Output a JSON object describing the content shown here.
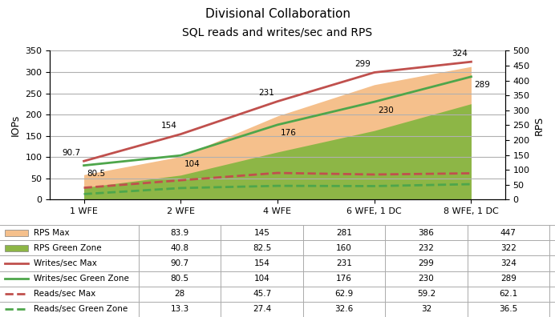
{
  "chart_data": {
    "type": "line",
    "title": "Divisional Collaboration",
    "subtitle": "SQL reads and writes/sec and RPS",
    "categories": [
      "1 WFE",
      "2 WFE",
      "4 WFE",
      "6 WFE, 1 DC",
      "8 WFE, 1 DC"
    ],
    "y_label": "IOPs",
    "y2_label": "RPS",
    "ylim": [
      0,
      350
    ],
    "yticks": [
      0,
      50,
      100,
      150,
      200,
      250,
      300,
      350
    ],
    "y2lim": [
      0,
      500
    ],
    "y2ticks": [
      0,
      50,
      100,
      150,
      200,
      250,
      300,
      350,
      400,
      450,
      500
    ],
    "grid": true,
    "series": [
      {
        "name": "RPS Max",
        "type": "area",
        "axis": "y2",
        "color": "#F5C08C",
        "values": [
          83.9,
          145,
          281,
          386,
          447
        ]
      },
      {
        "name": "RPS Green Zone",
        "type": "area",
        "axis": "y2",
        "color": "#8DB646",
        "values": [
          40.8,
          82.5,
          160,
          232,
          322
        ]
      },
      {
        "name": "Writes/sec Max",
        "type": "line",
        "line_style": "solid",
        "color": "#C0504D",
        "data_labels": true,
        "values": [
          90.7,
          154,
          231,
          299,
          324
        ]
      },
      {
        "name": "Writes/sec Green Zone",
        "type": "line",
        "line_style": "solid",
        "color": "#4EA64B",
        "data_labels": true,
        "values": [
          80.5,
          104,
          176,
          230,
          289
        ]
      },
      {
        "name": "Reads/sec Max",
        "type": "line",
        "line_style": "dashed",
        "color": "#C0504D",
        "values": [
          28,
          45.7,
          62.9,
          59.2,
          62.1
        ]
      },
      {
        "name": "Reads/sec Green Zone",
        "type": "line",
        "line_style": "dashed",
        "color": "#4EA64B",
        "values": [
          13.3,
          27.4,
          32.6,
          32,
          36.5
        ]
      }
    ]
  }
}
